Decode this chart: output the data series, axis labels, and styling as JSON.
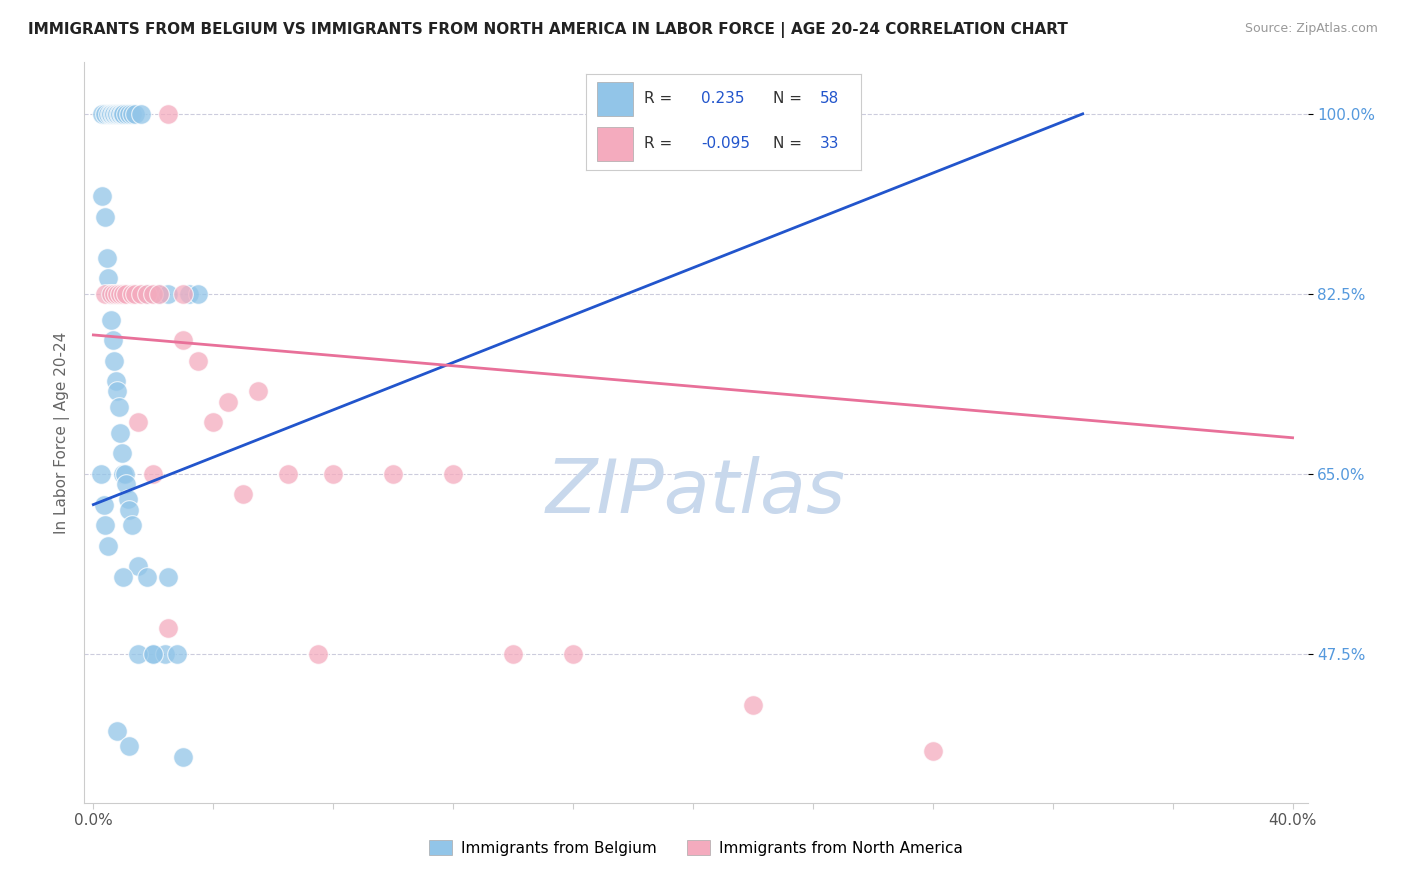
{
  "title": "IMMIGRANTS FROM BELGIUM VS IMMIGRANTS FROM NORTH AMERICA IN LABOR FORCE | AGE 20-24 CORRELATION CHART",
  "source": "Source: ZipAtlas.com",
  "ylabel": "In Labor Force | Age 20-24",
  "xlim": [
    0.0,
    40.0
  ],
  "ylim": [
    33.0,
    105.0
  ],
  "hgrid_lines": [
    47.5,
    65.0,
    82.5,
    100.0
  ],
  "R_blue": 0.235,
  "N_blue": 58,
  "R_pink": -0.095,
  "N_pink": 33,
  "legend_label_blue": "Immigrants from Belgium",
  "legend_label_pink": "Immigrants from North America",
  "blue_color": "#92C5E8",
  "pink_color": "#F4ABBE",
  "trendline_blue": "#2255CC",
  "trendline_pink": "#E87099",
  "blue_trendline_x0": 0.0,
  "blue_trendline_y0": 62.0,
  "blue_trendline_x1": 33.0,
  "blue_trendline_y1": 100.0,
  "pink_trendline_x0": 0.0,
  "pink_trendline_y0": 78.5,
  "pink_trendline_x1": 40.0,
  "pink_trendline_y1": 68.5,
  "blue_scatter_x": [
    0.3,
    0.4,
    0.5,
    0.55,
    0.6,
    0.65,
    0.7,
    0.75,
    0.8,
    0.85,
    0.9,
    0.95,
    1.0,
    1.1,
    1.2,
    1.3,
    1.4,
    1.6,
    1.8,
    2.2,
    2.5,
    3.2,
    3.5,
    0.3,
    0.4,
    0.45,
    0.5,
    0.55,
    0.6,
    0.65,
    0.7,
    0.75,
    0.8,
    0.85,
    0.9,
    0.95,
    1.0,
    1.05,
    1.1,
    1.15,
    1.2,
    1.3,
    1.5,
    1.8,
    2.0,
    2.4,
    0.25,
    0.35,
    0.4,
    0.5,
    1.5,
    2.0,
    2.8,
    1.0,
    0.8,
    1.2,
    2.5,
    3.0
  ],
  "blue_scatter_y": [
    100.0,
    100.0,
    100.0,
    100.0,
    100.0,
    100.0,
    100.0,
    100.0,
    100.0,
    100.0,
    100.0,
    100.0,
    100.0,
    100.0,
    100.0,
    100.0,
    100.0,
    100.0,
    82.5,
    82.5,
    82.5,
    82.5,
    82.5,
    92.0,
    90.0,
    86.0,
    84.0,
    82.5,
    80.0,
    78.0,
    76.0,
    74.0,
    73.0,
    71.5,
    69.0,
    67.0,
    65.0,
    65.0,
    64.0,
    62.5,
    61.5,
    60.0,
    56.0,
    55.0,
    47.5,
    47.5,
    65.0,
    62.0,
    60.0,
    58.0,
    47.5,
    47.5,
    47.5,
    55.0,
    40.0,
    38.5,
    55.0,
    37.5
  ],
  "pink_scatter_x": [
    0.4,
    0.6,
    0.7,
    0.8,
    0.9,
    1.0,
    1.1,
    1.3,
    1.4,
    1.6,
    1.8,
    2.0,
    2.2,
    2.5,
    3.0,
    3.5,
    4.5,
    5.5,
    6.5,
    8.0,
    10.0,
    12.0,
    14.0,
    16.0,
    1.5,
    2.0,
    3.0,
    4.0,
    5.0,
    7.5,
    2.5,
    22.0,
    28.0
  ],
  "pink_scatter_y": [
    82.5,
    82.5,
    82.5,
    82.5,
    82.5,
    82.5,
    82.5,
    82.5,
    82.5,
    82.5,
    82.5,
    82.5,
    82.5,
    100.0,
    82.5,
    76.0,
    72.0,
    73.0,
    65.0,
    65.0,
    65.0,
    65.0,
    47.5,
    47.5,
    70.0,
    65.0,
    78.0,
    70.0,
    63.0,
    47.5,
    50.0,
    42.5,
    38.0
  ],
  "watermark": "ZIPatlas",
  "watermark_color": "#C8D8EC",
  "background_color": "#FFFFFF",
  "ytick_color": "#5599DD",
  "spine_color": "#CCCCCC",
  "grid_color": "#CCCCDD",
  "title_color": "#222222",
  "source_color": "#999999",
  "ylabel_color": "#666666"
}
